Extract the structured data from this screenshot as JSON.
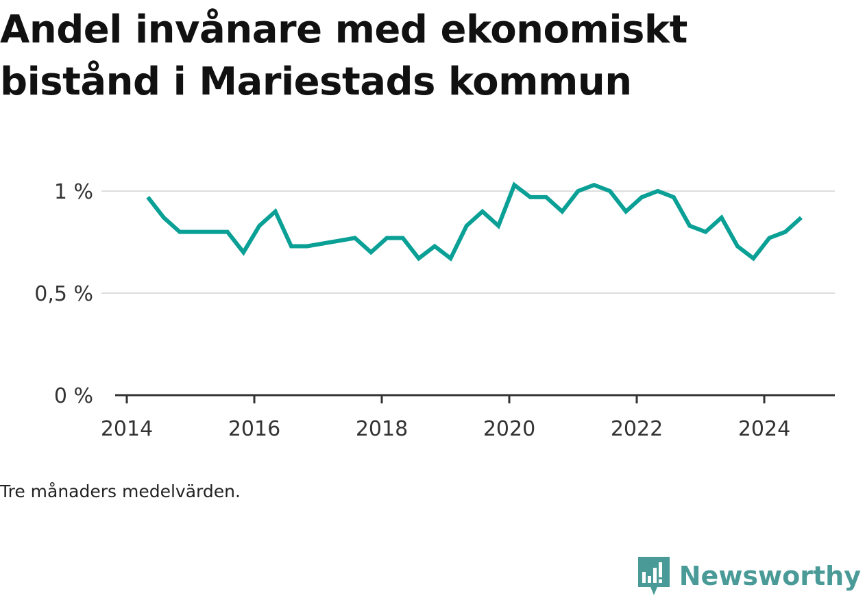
{
  "chart_data": {
    "type": "line",
    "title": "Andel invånare med ekonomiskt bistånd i Mariestads kommun",
    "note": "Tre månaders medelvärden.",
    "brand": "Newsworthy",
    "line_color": "#0aa096",
    "xlabel": "",
    "ylabel": "",
    "xlim": [
      2014,
      2025.2
    ],
    "ylim": [
      0,
      1.0
    ],
    "x_ticks": [
      2014,
      2016,
      2018,
      2020,
      2022,
      2024
    ],
    "x_tick_labels": [
      "2014",
      "2016",
      "2018",
      "2020",
      "2022",
      "2024"
    ],
    "y_ticks": [
      0,
      0.5,
      1.0
    ],
    "y_tick_labels": [
      "0 %",
      "0,5 %",
      "1 %"
    ],
    "grid": true,
    "series": [
      {
        "name": "",
        "x": [
          2014.33,
          2014.58,
          2014.83,
          2015.08,
          2015.33,
          2015.58,
          2015.83,
          2016.08,
          2016.33,
          2016.58,
          2016.83,
          2017.58,
          2017.83,
          2018.08,
          2018.33,
          2018.58,
          2018.83,
          2019.08,
          2019.33,
          2019.58,
          2019.83,
          2020.08,
          2020.33,
          2020.58,
          2020.83,
          2021.08,
          2021.33,
          2021.58,
          2021.83,
          2022.08,
          2022.33,
          2022.58,
          2022.83,
          2023.08,
          2023.33,
          2023.58,
          2023.83,
          2024.08,
          2024.33,
          2024.58
        ],
        "values": [
          0.97,
          0.87,
          0.8,
          0.8,
          0.8,
          0.8,
          0.7,
          0.83,
          0.9,
          0.73,
          0.73,
          0.77,
          0.7,
          0.77,
          0.77,
          0.67,
          0.73,
          0.67,
          0.83,
          0.9,
          0.83,
          1.03,
          0.97,
          0.97,
          0.9,
          1.0,
          1.03,
          1.0,
          0.9,
          0.97,
          1.0,
          0.97,
          0.83,
          0.8,
          0.87,
          0.73,
          0.67,
          0.77,
          0.8,
          0.87
        ]
      }
    ]
  }
}
